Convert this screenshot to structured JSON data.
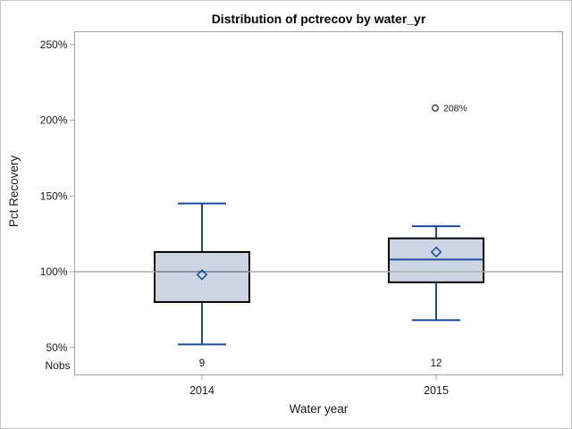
{
  "chart_data": {
    "type": "boxplot",
    "title": "Distribution of pctrecov by water_yr",
    "xlabel": "Water year",
    "ylabel": "Pct Recovery",
    "legend": "none",
    "grid": "off",
    "y_axis": {
      "tick_values": [
        250,
        200,
        150,
        100,
        50
      ],
      "tick_labels": [
        "250%",
        "200%",
        "150%",
        "100%",
        "50%"
      ],
      "range_shown": [
        32,
        259
      ]
    },
    "reference_line_value": 100,
    "nobs_row_label": "Nobs",
    "categories": [
      "2014",
      "2015"
    ],
    "series": [
      {
        "category": "2014",
        "nobs": "9",
        "whisker_low": 52,
        "q1": 80,
        "median": 100,
        "q3": 113,
        "whisker_high": 145,
        "mean": 98,
        "outliers": []
      },
      {
        "category": "2015",
        "nobs": "12",
        "whisker_low": 68,
        "q1": 93,
        "median": 108,
        "q3": 122,
        "whisker_high": 130,
        "mean": 113,
        "outliers": [
          {
            "value": 208,
            "label": "208%"
          }
        ]
      }
    ],
    "colors": {
      "box_fill": "#ccd5e4",
      "box_border": "#000000",
      "whisker": "#1c4a9a",
      "median": "#1c4a9a",
      "mean_marker": "#1c4a9a",
      "reference_line": "#ababab",
      "plot_border": "#9ba1a6",
      "axis_tick": "#9ba1a6",
      "text": "#1a1a1a",
      "outlier_marker": "#1a1a1a"
    }
  }
}
